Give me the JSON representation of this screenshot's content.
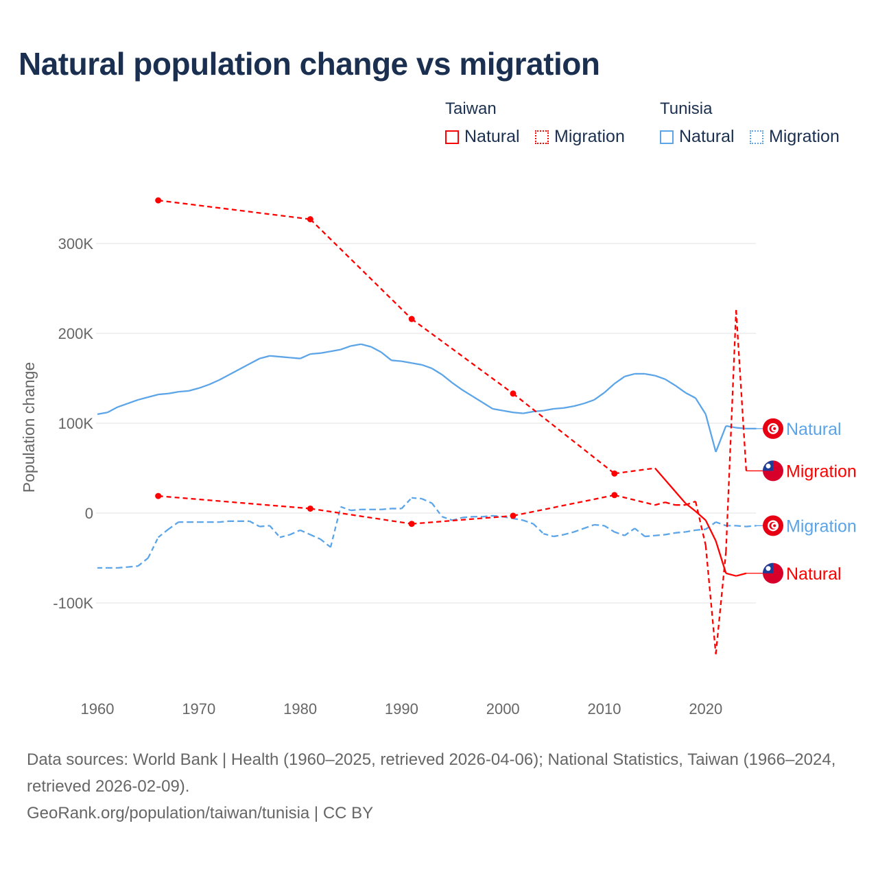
{
  "title": "Natural population change vs migration",
  "legend": {
    "groups": [
      {
        "country": "Taiwan",
        "color": "#ff0000",
        "items": [
          {
            "label": "Natural",
            "style": "solid"
          },
          {
            "label": "Migration",
            "style": "dotted"
          }
        ]
      },
      {
        "country": "Tunisia",
        "color": "#5ba4e8",
        "items": [
          {
            "label": "Natural",
            "style": "solid"
          },
          {
            "label": "Migration",
            "style": "dotted"
          }
        ]
      }
    ]
  },
  "footer": {
    "sources": "Data sources: World Bank | Health (1960–2025, retrieved 2026-04-06); National Statistics, Taiwan (1966–2024, retrieved 2026-02-09).",
    "credit": "GeoRank.org/population/taiwan/tunisia | CC BY"
  },
  "chart_data": {
    "type": "line",
    "title": "Natural population change vs migration",
    "xlabel": "",
    "ylabel": "Population change",
    "xlim": [
      1960,
      2025
    ],
    "ylim": [
      -160000,
      350000
    ],
    "x_ticks": [
      1960,
      1970,
      1980,
      1990,
      2000,
      2010,
      2020
    ],
    "y_ticks": [
      {
        "value": 300000,
        "label": "300K"
      },
      {
        "value": 200000,
        "label": "200K"
      },
      {
        "value": 100000,
        "label": "100K"
      },
      {
        "value": 0,
        "label": "0"
      },
      {
        "value": -100000,
        "label": "-100K"
      }
    ],
    "grid": true,
    "series": [
      {
        "name": "Tunisia Natural",
        "country": "Tunisia",
        "kind": "Natural",
        "end_label": "Natural",
        "flag": "tunisia-flag",
        "color": "#5ba4e8",
        "x": [
          1960,
          1961,
          1962,
          1963,
          1964,
          1965,
          1966,
          1967,
          1968,
          1969,
          1970,
          1971,
          1972,
          1973,
          1974,
          1975,
          1976,
          1977,
          1978,
          1979,
          1980,
          1981,
          1982,
          1983,
          1984,
          1985,
          1986,
          1987,
          1988,
          1989,
          1990,
          1991,
          1992,
          1993,
          1994,
          1995,
          1996,
          1997,
          1998,
          1999,
          2000,
          2001,
          2002,
          2003,
          2004,
          2005,
          2006,
          2007,
          2008,
          2009,
          2010,
          2011,
          2012,
          2013,
          2014,
          2015,
          2016,
          2017,
          2018,
          2019,
          2020,
          2021,
          2022,
          2023,
          2024,
          2025
        ],
        "y": [
          110000,
          112000,
          118000,
          122000,
          126000,
          129000,
          132000,
          133000,
          135000,
          136000,
          139000,
          143000,
          148000,
          154000,
          160000,
          166000,
          172000,
          175000,
          174000,
          173000,
          172000,
          177000,
          178000,
          180000,
          182000,
          186000,
          188000,
          185000,
          179000,
          170000,
          169000,
          167000,
          165000,
          161000,
          154000,
          145000,
          137000,
          130000,
          123000,
          116000,
          114000,
          112000,
          111000,
          113000,
          114000,
          116000,
          117000,
          119000,
          122000,
          126000,
          134000,
          144000,
          152000,
          155000,
          155000,
          153000,
          149000,
          142000,
          134000,
          128000,
          110000,
          68000,
          97000,
          95000,
          94000,
          94000
        ]
      },
      {
        "name": "Tunisia Migration",
        "country": "Tunisia",
        "kind": "Migration",
        "end_label": "Migration",
        "flag": "tunisia-flag",
        "color": "#5ba4e8",
        "x": [
          1960,
          1961,
          1962,
          1963,
          1964,
          1965,
          1966,
          1967,
          1968,
          1969,
          1970,
          1971,
          1972,
          1973,
          1974,
          1975,
          1976,
          1977,
          1978,
          1979,
          1980,
          1981,
          1982,
          1983,
          1984,
          1985,
          1986,
          1987,
          1988,
          1989,
          1990,
          1991,
          1992,
          1993,
          1994,
          1995,
          1996,
          1997,
          1998,
          1999,
          2000,
          2001,
          2002,
          2003,
          2004,
          2005,
          2006,
          2007,
          2008,
          2009,
          2010,
          2011,
          2012,
          2013,
          2014,
          2015,
          2016,
          2017,
          2018,
          2019,
          2020,
          2021,
          2022,
          2023,
          2024,
          2025
        ],
        "y": [
          -61000,
          -61000,
          -61000,
          -60000,
          -59000,
          -50000,
          -27000,
          -18000,
          -10000,
          -10000,
          -10000,
          -10000,
          -10000,
          -9000,
          -9000,
          -9000,
          -15000,
          -14000,
          -27000,
          -24000,
          -19000,
          -24000,
          -29000,
          -38000,
          7000,
          3000,
          4000,
          4000,
          4000,
          5000,
          5000,
          17000,
          16000,
          11000,
          -4000,
          -8000,
          -5000,
          -4000,
          -4000,
          -3000,
          -4000,
          -6000,
          -8000,
          -12000,
          -23000,
          -26000,
          -24000,
          -21000,
          -17000,
          -13000,
          -14000,
          -21000,
          -25000,
          -17000,
          -26000,
          -25000,
          -24000,
          -22000,
          -21000,
          -19000,
          -18000,
          -10000,
          -14000,
          -14000,
          -15000,
          -14000
        ]
      },
      {
        "name": "Taiwan Natural",
        "country": "Taiwan",
        "kind": "Natural",
        "end_label": "Natural",
        "flag": "taiwan-flag",
        "color": "#ff0000",
        "x": [
          1966,
          1981,
          1991,
          2001,
          2011,
          2015,
          2016,
          2017,
          2018,
          2019,
          2020,
          2021,
          2022,
          2023,
          2024
        ],
        "y": [
          348000,
          327000,
          216000,
          133000,
          44000,
          50000,
          37000,
          24000,
          11000,
          2000,
          -8000,
          -31000,
          -67000,
          -70000,
          -67000
        ]
      },
      {
        "name": "Taiwan Migration",
        "country": "Taiwan",
        "kind": "Migration",
        "end_label": "Migration",
        "flag": "taiwan-flag",
        "color": "#ff0000",
        "x": [
          1966,
          1981,
          1991,
          2001,
          2011,
          2015,
          2016,
          2017,
          2018,
          2019,
          2020,
          2021,
          2022,
          2023,
          2024
        ],
        "y": [
          19000,
          5000,
          -12000,
          -3000,
          20000,
          9000,
          12000,
          9000,
          9000,
          13000,
          -36000,
          -157000,
          -43000,
          226000,
          47000
        ]
      }
    ]
  }
}
